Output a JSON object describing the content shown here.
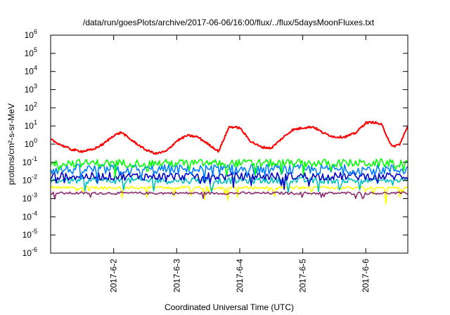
{
  "chart_data": {
    "type": "line",
    "title": "/data/run/goesPlots/archive/2017-06-06/16:00/flux/../flux/5daysMoonFluxes.txt",
    "xlabel": "Coordinated Universal Time (UTC)",
    "ylabel": "protons/cm²-s-sr-MeV",
    "yscale": "log",
    "ylim": [
      1e-06,
      1000000.0
    ],
    "xlim": [
      "2017-06-01 00:00",
      "2017-06-06 16:00"
    ],
    "grid": false,
    "legend": "none",
    "x_ticks": [
      {
        "value": "2017-06-02 00:00",
        "label": "2017-6-2"
      },
      {
        "value": "2017-06-03 00:00",
        "label": "2017-6-3"
      },
      {
        "value": "2017-06-04 00:00",
        "label": "2017-6-4"
      },
      {
        "value": "2017-06-05 00:00",
        "label": "2017-6-5"
      },
      {
        "value": "2017-06-06 00:00",
        "label": "2017-6-6"
      }
    ],
    "y_ticks": [
      {
        "value": 1000000.0,
        "base": "10",
        "exp": "6"
      },
      {
        "value": 100000.0,
        "base": "10",
        "exp": "5"
      },
      {
        "value": 10000.0,
        "base": "10",
        "exp": "4"
      },
      {
        "value": 1000.0,
        "base": "10",
        "exp": "3"
      },
      {
        "value": 100.0,
        "base": "10",
        "exp": "2"
      },
      {
        "value": 10.0,
        "base": "10",
        "exp": "1"
      },
      {
        "value": 1.0,
        "base": "10",
        "exp": "0"
      },
      {
        "value": 0.1,
        "base": "10",
        "exp": "-1"
      },
      {
        "value": 0.01,
        "base": "10",
        "exp": "-2"
      },
      {
        "value": 0.001,
        "base": "10",
        "exp": "-3"
      },
      {
        "value": 0.0001,
        "base": "10",
        "exp": "-4"
      },
      {
        "value": 1e-05,
        "base": "10",
        "exp": "-5"
      },
      {
        "value": 1e-06,
        "base": "10",
        "exp": "-6"
      }
    ],
    "series": [
      {
        "color": "#ff0000",
        "x": [
          "2017-06-01 00:00",
          "2017-06-01 04:00",
          "2017-06-01 08:00",
          "2017-06-01 12:00",
          "2017-06-01 16:00",
          "2017-06-01 20:00",
          "2017-06-02 00:00",
          "2017-06-02 03:00",
          "2017-06-02 06:00",
          "2017-06-02 09:00",
          "2017-06-02 12:00",
          "2017-06-02 16:00",
          "2017-06-02 20:00",
          "2017-06-03 00:00",
          "2017-06-03 04:00",
          "2017-06-03 08:00",
          "2017-06-03 12:00",
          "2017-06-03 16:00",
          "2017-06-03 18:00",
          "2017-06-03 20:00",
          "2017-06-04 00:00",
          "2017-06-04 04:00",
          "2017-06-04 08:00",
          "2017-06-04 12:00",
          "2017-06-04 16:00",
          "2017-06-04 20:00",
          "2017-06-05 00:00",
          "2017-06-05 04:00",
          "2017-06-05 08:00",
          "2017-06-05 12:00",
          "2017-06-05 16:00",
          "2017-06-05 20:00",
          "2017-06-06 00:00",
          "2017-06-06 03:00",
          "2017-06-06 06:00",
          "2017-06-06 10:00",
          "2017-06-06 13:00",
          "2017-06-06 16:00"
        ],
        "values": [
          1.8,
          0.9,
          0.5,
          0.4,
          0.5,
          1.0,
          3.0,
          4.5,
          2.0,
          1.0,
          0.5,
          0.3,
          0.4,
          1.5,
          3.0,
          2.5,
          1.0,
          0.4,
          2.0,
          9.0,
          8.0,
          1.5,
          0.7,
          0.6,
          2.0,
          6.0,
          8.0,
          9.0,
          4.0,
          2.5,
          2.5,
          4.0,
          15.0,
          16.0,
          12.0,
          0.7,
          1.0,
          10.0
        ]
      },
      {
        "color": "#00ff00",
        "x": [
          "2017-06-01 00:00",
          "2017-06-06 16:00"
        ],
        "values": [
          0.09,
          0.09
        ]
      },
      {
        "color": "#0080ff",
        "x": [
          "2017-06-01 00:00",
          "2017-06-06 16:00"
        ],
        "values": [
          0.04,
          0.04
        ]
      },
      {
        "color": "#0000c8",
        "x": [
          "2017-06-01 00:00",
          "2017-06-06 16:00"
        ],
        "values": [
          0.017,
          0.017
        ]
      },
      {
        "color": "#00c0c0",
        "x": [
          "2017-06-01 00:00",
          "2017-06-06 16:00"
        ],
        "values": [
          0.01,
          0.01
        ]
      },
      {
        "color": "#ffff00",
        "x": [
          "2017-06-01 00:00",
          "2017-06-06 16:00"
        ],
        "values": [
          0.004,
          0.004
        ]
      },
      {
        "color": "#8b2a6f",
        "x": [
          "2017-06-01 00:00",
          "2017-06-06 16:00"
        ],
        "values": [
          0.002,
          0.002
        ]
      }
    ]
  }
}
